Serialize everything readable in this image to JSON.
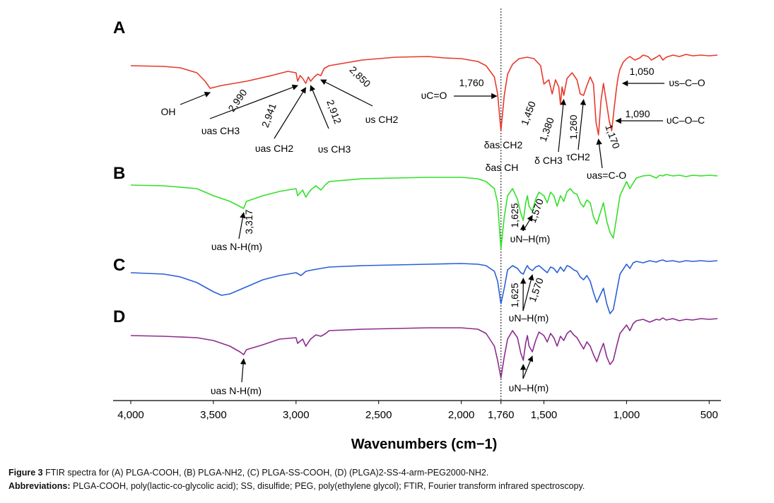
{
  "chart_data": {
    "type": "line",
    "xlabel": "Wavenumbers (cm−1)",
    "xlim": [
      4000,
      450
    ],
    "x_reversed": true,
    "ticks": [
      {
        "value": 4000,
        "label": "4,000"
      },
      {
        "value": 3500,
        "label": "3,500"
      },
      {
        "value": 3000,
        "label": "3,000"
      },
      {
        "value": 2500,
        "label": "2,500"
      },
      {
        "value": 2000,
        "label": "2,000"
      },
      {
        "value": 1760,
        "label": "1,760"
      },
      {
        "value": 1500,
        "label": "1,500"
      },
      {
        "value": 1000,
        "label": "1,000"
      },
      {
        "value": 500,
        "label": "500"
      }
    ],
    "reference_line": {
      "x": 1760,
      "style": "dotted"
    },
    "series": [
      {
        "name": "A",
        "color": "#e8392b",
        "x": [
          4000,
          3800,
          3700,
          3600,
          3550,
          3520,
          3450,
          3300,
          3150,
          3050,
          3000,
          2990,
          2975,
          2960,
          2941,
          2925,
          2912,
          2890,
          2870,
          2850,
          2830,
          2800,
          2600,
          2400,
          2200,
          2100,
          2000,
          1900,
          1850,
          1800,
          1780,
          1760,
          1740,
          1720,
          1690,
          1650,
          1600,
          1560,
          1520,
          1500,
          1470,
          1450,
          1430,
          1410,
          1400,
          1390,
          1380,
          1360,
          1330,
          1300,
          1280,
          1260,
          1240,
          1220,
          1200,
          1185,
          1170,
          1155,
          1140,
          1120,
          1105,
          1090,
          1075,
          1060,
          1050,
          1040,
          1020,
          1000,
          980,
          950,
          920,
          900,
          870,
          850,
          820,
          800,
          780,
          760,
          720,
          680,
          640,
          600,
          550,
          500,
          450
        ],
        "y": [
          -20,
          -21,
          -23,
          -30,
          -42,
          -52,
          -48,
          -42,
          -34,
          -28,
          -30,
          -42,
          -34,
          -38,
          -45,
          -36,
          -42,
          -36,
          -32,
          -34,
          -24,
          -20,
          -12,
          -8,
          -7,
          -9,
          -10,
          -14,
          -20,
          -36,
          -60,
          -112,
          -62,
          -32,
          -18,
          -10,
          -8,
          -10,
          -20,
          -46,
          -40,
          -60,
          -40,
          -50,
          -75,
          -50,
          -62,
          -38,
          -30,
          -40,
          -60,
          -62,
          -48,
          -36,
          -46,
          -100,
          -118,
          -70,
          -45,
          -75,
          -98,
          -112,
          -80,
          -50,
          -35,
          -25,
          -15,
          -10,
          -7,
          -12,
          -9,
          -5,
          -7,
          -12,
          -8,
          -5,
          -12,
          -8,
          -5,
          -7,
          -4,
          -6,
          -5,
          -6,
          -5
        ]
      },
      {
        "name": "B",
        "color": "#33e02a",
        "x": [
          4000,
          3800,
          3600,
          3500,
          3400,
          3317,
          3300,
          3200,
          3100,
          3000,
          2990,
          2960,
          2941,
          2912,
          2880,
          2850,
          2820,
          2800,
          2600,
          2400,
          2200,
          2000,
          1900,
          1850,
          1800,
          1780,
          1760,
          1740,
          1720,
          1690,
          1660,
          1640,
          1625,
          1610,
          1600,
          1590,
          1570,
          1550,
          1530,
          1500,
          1480,
          1460,
          1440,
          1420,
          1400,
          1380,
          1360,
          1340,
          1320,
          1300,
          1280,
          1260,
          1240,
          1220,
          1200,
          1180,
          1160,
          1140,
          1120,
          1100,
          1080,
          1060,
          1040,
          1000,
          980,
          960,
          940,
          900,
          860,
          820,
          800,
          780,
          760,
          720,
          680,
          640,
          600,
          550,
          500,
          450
        ],
        "y": [
          -15,
          -16,
          -20,
          -30,
          -38,
          -48,
          -38,
          -30,
          -24,
          -20,
          -30,
          -22,
          -32,
          -22,
          -16,
          -22,
          -14,
          -10,
          -6,
          -5,
          -4,
          -4,
          -6,
          -10,
          -20,
          -40,
          -105,
          -60,
          -30,
          -20,
          -35,
          -55,
          -65,
          -40,
          -30,
          -45,
          -52,
          -35,
          -25,
          -30,
          -40,
          -25,
          -30,
          -45,
          -30,
          -38,
          -24,
          -20,
          -26,
          -28,
          -40,
          -46,
          -36,
          -40,
          -60,
          -70,
          -55,
          -40,
          -66,
          -82,
          -90,
          -60,
          -30,
          -10,
          -20,
          -12,
          -5,
          -2,
          -1,
          -5,
          -1,
          -2,
          0,
          -2,
          -1,
          -3,
          -1,
          -2,
          -1,
          -2
        ]
      },
      {
        "name": "C",
        "color": "#2a5fd8",
        "x": [
          4000,
          3800,
          3700,
          3600,
          3500,
          3450,
          3400,
          3300,
          3200,
          3100,
          3000,
          2970,
          2940,
          2900,
          2850,
          2800,
          2700,
          2600,
          2400,
          2200,
          2000,
          1900,
          1850,
          1800,
          1780,
          1760,
          1740,
          1720,
          1690,
          1660,
          1640,
          1625,
          1610,
          1600,
          1590,
          1570,
          1550,
          1530,
          1500,
          1480,
          1460,
          1440,
          1420,
          1400,
          1380,
          1360,
          1340,
          1320,
          1300,
          1280,
          1260,
          1240,
          1220,
          1200,
          1180,
          1160,
          1140,
          1120,
          1100,
          1080,
          1060,
          1040,
          1000,
          980,
          960,
          940,
          900,
          860,
          820,
          800,
          780,
          760,
          720,
          680,
          640,
          600,
          550,
          500,
          450
        ],
        "y": [
          -18,
          -20,
          -24,
          -32,
          -45,
          -50,
          -48,
          -38,
          -28,
          -22,
          -18,
          -22,
          -16,
          -14,
          -12,
          -10,
          -9,
          -8,
          -7,
          -6,
          -5,
          -6,
          -8,
          -16,
          -30,
          -62,
          -40,
          -14,
          -8,
          -12,
          -18,
          -20,
          -12,
          -8,
          -12,
          -15,
          -10,
          -8,
          -14,
          -18,
          -10,
          -12,
          -18,
          -10,
          -16,
          -8,
          -10,
          -14,
          -16,
          -24,
          -28,
          -22,
          -30,
          -46,
          -60,
          -50,
          -40,
          -62,
          -76,
          -70,
          -45,
          -20,
          -6,
          -12,
          -4,
          -2,
          -4,
          -1,
          -3,
          -1,
          0,
          -2,
          -1,
          -3,
          -1,
          -2,
          -1,
          -2,
          -1
        ]
      },
      {
        "name": "D",
        "color": "#8c2c8c",
        "x": [
          4000,
          3800,
          3600,
          3500,
          3400,
          3340,
          3317,
          3300,
          3200,
          3100,
          3000,
          2990,
          2960,
          2941,
          2912,
          2880,
          2850,
          2820,
          2800,
          2600,
          2400,
          2200,
          2000,
          1900,
          1850,
          1800,
          1780,
          1760,
          1740,
          1720,
          1690,
          1660,
          1640,
          1625,
          1610,
          1600,
          1590,
          1570,
          1550,
          1530,
          1500,
          1480,
          1460,
          1440,
          1420,
          1400,
          1380,
          1360,
          1340,
          1320,
          1300,
          1280,
          1260,
          1240,
          1220,
          1200,
          1180,
          1160,
          1140,
          1120,
          1100,
          1080,
          1060,
          1040,
          1000,
          980,
          960,
          940,
          900,
          860,
          820,
          800,
          780,
          760,
          720,
          680,
          640,
          600,
          550,
          500,
          450
        ],
        "y": [
          -25,
          -26,
          -28,
          -32,
          -40,
          -48,
          -52,
          -45,
          -38,
          -30,
          -28,
          -36,
          -30,
          -40,
          -30,
          -24,
          -26,
          -22,
          -18,
          -16,
          -15,
          -14,
          -14,
          -16,
          -22,
          -40,
          -60,
          -85,
          -55,
          -30,
          -18,
          -28,
          -50,
          -60,
          -35,
          -25,
          -40,
          -48,
          -32,
          -20,
          -25,
          -34,
          -22,
          -28,
          -40,
          -26,
          -32,
          -22,
          -18,
          -24,
          -28,
          -36,
          -44,
          -34,
          -40,
          -52,
          -62,
          -48,
          -36,
          -55,
          -66,
          -60,
          -40,
          -22,
          -10,
          -18,
          -8,
          -4,
          -2,
          -6,
          -2,
          -3,
          0,
          -3,
          -1,
          -4,
          -2,
          -3,
          -1,
          -2,
          -1
        ]
      }
    ],
    "annotations": [
      {
        "text": "OH",
        "x": 3520,
        "series": "A"
      },
      {
        "text": "2,990",
        "x": 2990,
        "series": "A"
      },
      {
        "text": "υas CH3",
        "x": 2990,
        "series": "A"
      },
      {
        "text": "2,941",
        "x": 2941,
        "series": "A"
      },
      {
        "text": "υas CH2",
        "x": 2941,
        "series": "A"
      },
      {
        "text": "2,912",
        "x": 2912,
        "series": "A"
      },
      {
        "text": "υs CH3",
        "x": 2912,
        "series": "A"
      },
      {
        "text": "2,850",
        "x": 2850,
        "series": "A"
      },
      {
        "text": "υs CH2",
        "x": 2850,
        "series": "A"
      },
      {
        "text": "1,760",
        "x": 1760,
        "series": "A"
      },
      {
        "text": "υC=O",
        "x": 1760,
        "series": "A"
      },
      {
        "text": "δas CH2",
        "x": 1760,
        "series": "A"
      },
      {
        "text": "δas CH",
        "x": 1760,
        "series": "A"
      },
      {
        "text": "1,450",
        "x": 1450,
        "series": "A"
      },
      {
        "text": "1,380",
        "x": 1380,
        "series": "A"
      },
      {
        "text": "δ CH3",
        "x": 1380,
        "series": "A"
      },
      {
        "text": "1,260",
        "x": 1260,
        "series": "A"
      },
      {
        "text": "τCH2",
        "x": 1260,
        "series": "A"
      },
      {
        "text": "1,170",
        "x": 1170,
        "series": "A"
      },
      {
        "text": "υas=C-O",
        "x": 1170,
        "series": "A"
      },
      {
        "text": "1,050",
        "x": 1050,
        "series": "A"
      },
      {
        "text": "υs–C–O",
        "x": 1050,
        "series": "A"
      },
      {
        "text": "1,090",
        "x": 1090,
        "series": "A"
      },
      {
        "text": "υC–O–C",
        "x": 1090,
        "series": "A"
      },
      {
        "text": "3,317",
        "x": 3317,
        "series": "B"
      },
      {
        "text": "υas N-H(m)",
        "x": 3317,
        "series": "B"
      },
      {
        "text": "1,625",
        "x": 1625,
        "series": "B"
      },
      {
        "text": "1,570",
        "x": 1570,
        "series": "B"
      },
      {
        "text": "υN–H(m)",
        "x": 1600,
        "series": "B"
      },
      {
        "text": "1,625",
        "x": 1625,
        "series": "C"
      },
      {
        "text": "1,570",
        "x": 1570,
        "series": "C"
      },
      {
        "text": "υN–H(m)",
        "x": 1600,
        "series": "C"
      },
      {
        "text": "υas N-H(m)",
        "x": 3317,
        "series": "D"
      },
      {
        "text": "υN–H(m)",
        "x": 1600,
        "series": "D"
      }
    ]
  },
  "caption": {
    "label": "Figure 3",
    "text": "FTIR spectra for (A) PLGA-COOH, (B) PLGA-NH2, (C) PLGA-SS-COOH, (D) (PLGA)2-SS-4-arm-PEG2000-NH2.",
    "abbrev_label": "Abbreviations:",
    "abbrev_text": "PLGA-COOH, poly(lactic-co-glycolic acid); SS, disulfide; PEG, poly(ethylene glycol); FTIR, Fourier transform infrared spectroscopy."
  }
}
